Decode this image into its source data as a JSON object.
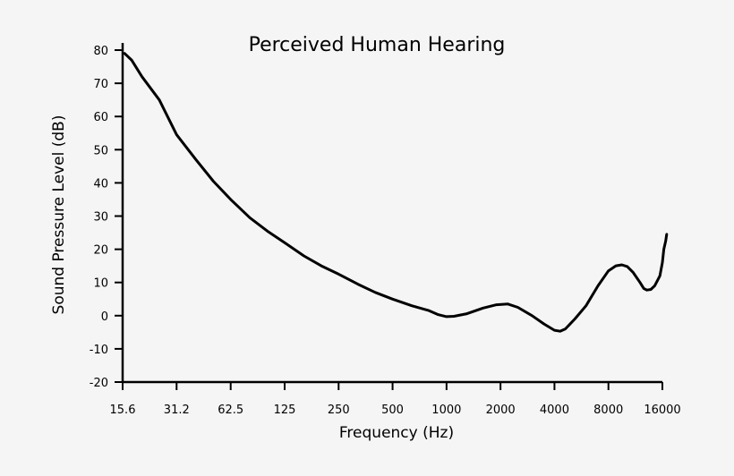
{
  "chart_data": {
    "type": "line",
    "title": "Perceived Human Hearing",
    "xlabel": "Frequency (Hz)",
    "ylabel": "Sound Pressure Level (dB)",
    "x_scale": "log2",
    "xlim": [
      15.6,
      16000
    ],
    "ylim": [
      -20,
      80
    ],
    "x_ticks": [
      15.6,
      31.2,
      62.5,
      125,
      250,
      500,
      1000,
      2000,
      4000,
      8000,
      16000
    ],
    "x_tick_labels": [
      "15.6",
      "31.2",
      "62.5",
      "125",
      "250",
      "500",
      "1000",
      "2000",
      "4000",
      "8000",
      "16000"
    ],
    "y_ticks": [
      80,
      70,
      60,
      50,
      40,
      30,
      20,
      10,
      0,
      -10,
      -20
    ],
    "y_tick_labels": [
      "80",
      "70",
      "60",
      "50",
      "40",
      "30",
      "20",
      "10",
      "0",
      "-10",
      "-20"
    ],
    "grid": false,
    "series": [
      {
        "color": "#000000",
        "points": [
          [
            16,
            79
          ],
          [
            17.5,
            77
          ],
          [
            20,
            72
          ],
          [
            25,
            65
          ],
          [
            31.2,
            54.5
          ],
          [
            40,
            47
          ],
          [
            50,
            40.5
          ],
          [
            62.5,
            35
          ],
          [
            80,
            29.5
          ],
          [
            100,
            25.5
          ],
          [
            125,
            22
          ],
          [
            160,
            18
          ],
          [
            200,
            15
          ],
          [
            250,
            12.5
          ],
          [
            320,
            9.5
          ],
          [
            400,
            7
          ],
          [
            500,
            5
          ],
          [
            640,
            3
          ],
          [
            800,
            1.5
          ],
          [
            900,
            0.3
          ],
          [
            1000,
            -0.3
          ],
          [
            1100,
            -0.2
          ],
          [
            1300,
            0.6
          ],
          [
            1600,
            2.3
          ],
          [
            1900,
            3.3
          ],
          [
            2200,
            3.5
          ],
          [
            2500,
            2.5
          ],
          [
            3000,
            0
          ],
          [
            3500,
            -2.5
          ],
          [
            4000,
            -4.4
          ],
          [
            4300,
            -4.7
          ],
          [
            4600,
            -4
          ],
          [
            5200,
            -1
          ],
          [
            6000,
            3
          ],
          [
            7000,
            9
          ],
          [
            8000,
            13.5
          ],
          [
            8800,
            15
          ],
          [
            9500,
            15.3
          ],
          [
            10200,
            14.8
          ],
          [
            11000,
            13
          ],
          [
            12000,
            10
          ],
          [
            12600,
            8.2
          ],
          [
            13100,
            7.7
          ],
          [
            13800,
            7.9
          ],
          [
            14500,
            9
          ],
          [
            15500,
            12
          ],
          [
            16000,
            16
          ],
          [
            16300,
            20
          ],
          [
            16700,
            22.5
          ],
          [
            16900,
            24.5
          ]
        ]
      }
    ]
  }
}
